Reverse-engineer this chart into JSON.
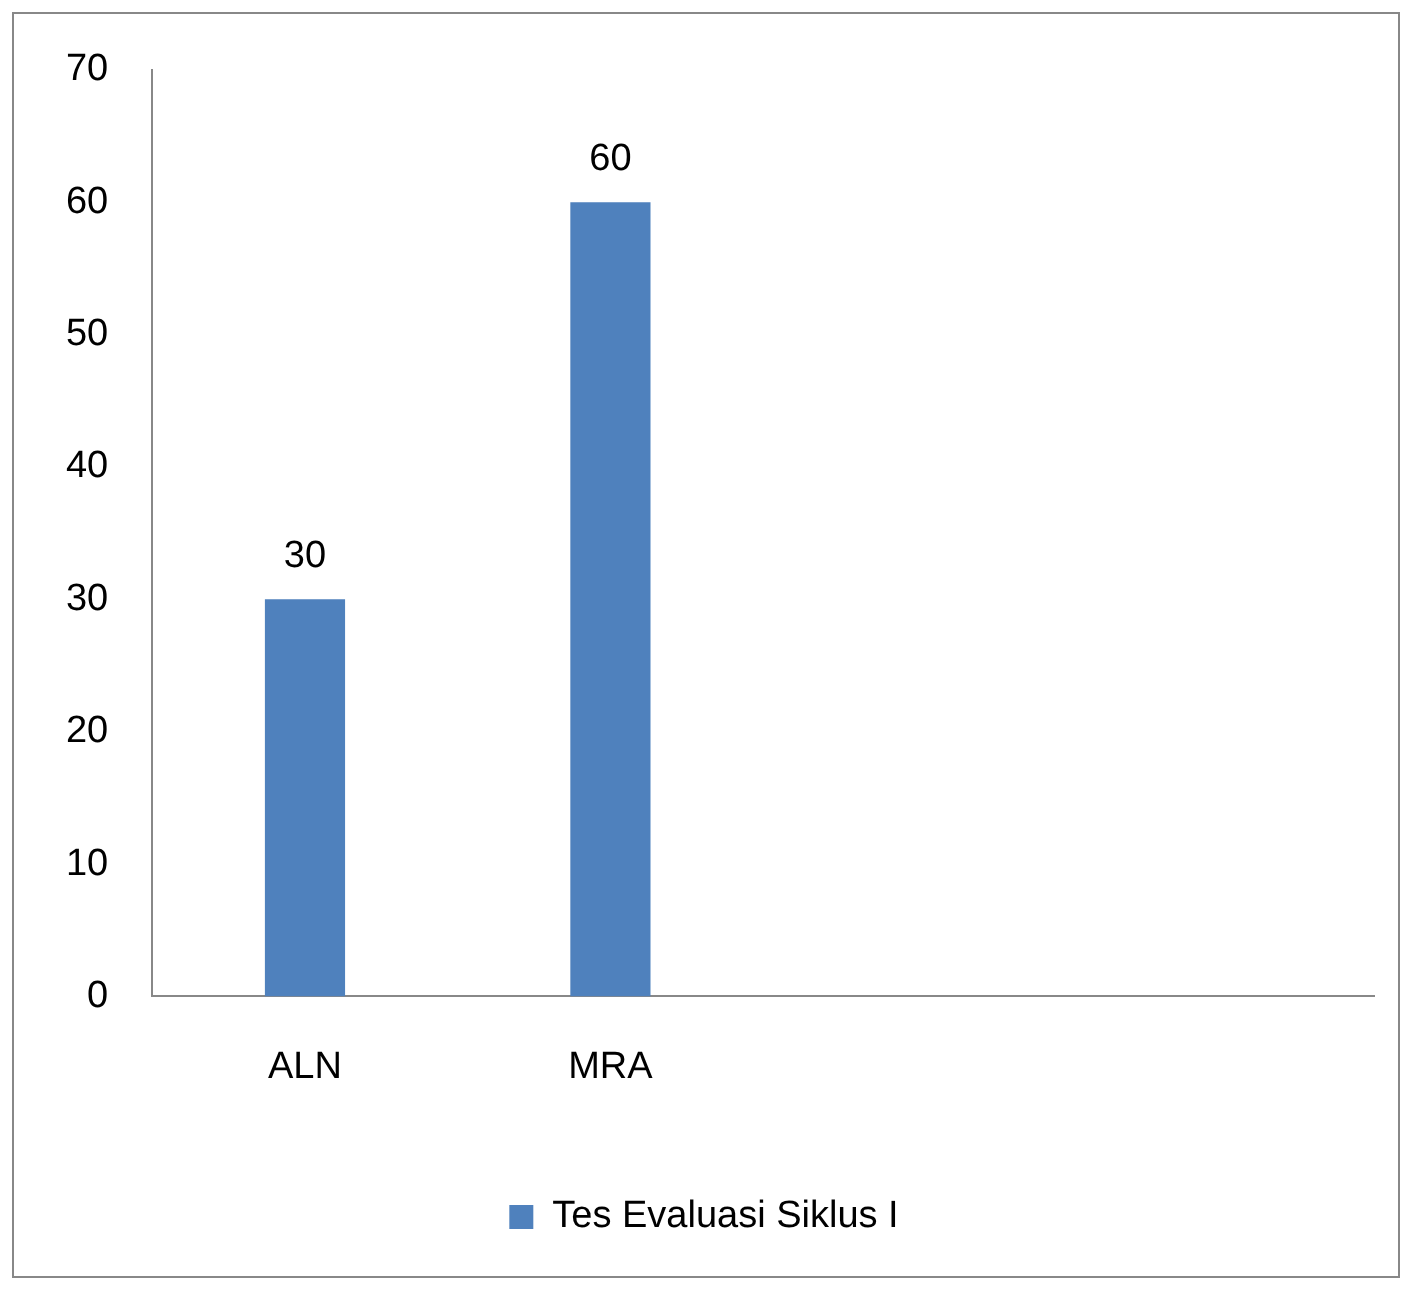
{
  "chart_data": {
    "type": "bar",
    "categories": [
      "ALN",
      "MRA",
      null,
      null
    ],
    "series": [
      {
        "name": "Tes Evaluasi Siklus I",
        "color": "#4f81bd",
        "values": [
          30,
          60,
          null,
          null
        ]
      }
    ],
    "ylim": [
      0,
      70
    ],
    "yticks": [
      0,
      10,
      20,
      30,
      40,
      50,
      60,
      70
    ],
    "grid": false,
    "legend": "bottom",
    "data_labels": true
  }
}
